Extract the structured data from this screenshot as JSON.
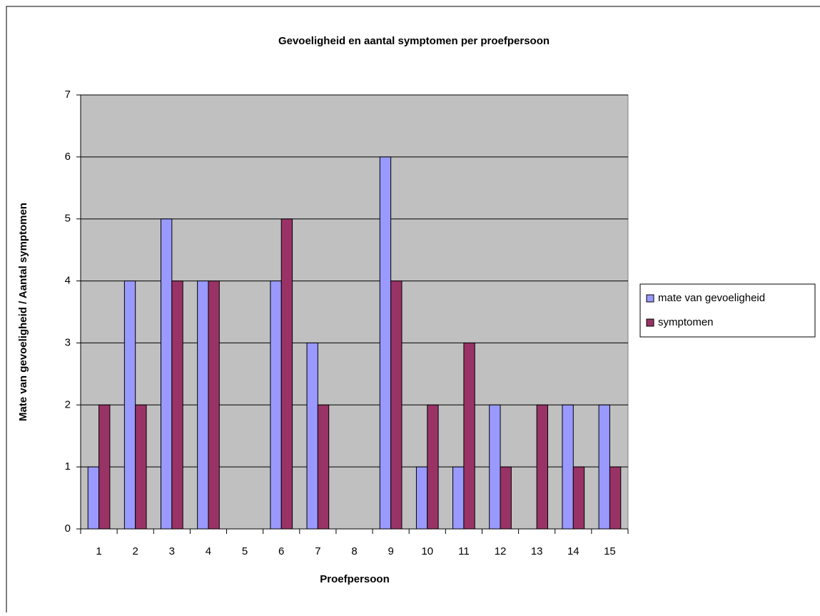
{
  "chart_data": {
    "type": "bar",
    "title": "Gevoeligheid en aantal symptomen per proefpersoon",
    "x_label": "Proefpersoon",
    "y_label": "Mate van gevoeligheid / Aantal symptomen",
    "categories": [
      "1",
      "2",
      "3",
      "4",
      "5",
      "6",
      "7",
      "8",
      "9",
      "10",
      "11",
      "12",
      "13",
      "14",
      "15"
    ],
    "series": [
      {
        "name": "mate van gevoeligheid",
        "color": "#9999ff",
        "values": [
          1,
          4,
          5,
          4,
          0,
          4,
          3,
          0,
          6,
          1,
          1,
          2,
          0,
          2,
          2
        ]
      },
      {
        "name": "symptomen",
        "color": "#993366",
        "values": [
          2,
          2,
          4,
          4,
          0,
          5,
          2,
          0,
          4,
          2,
          3,
          1,
          2,
          1,
          1
        ]
      }
    ],
    "ylim": [
      0,
      7
    ],
    "yticks": [
      0,
      1,
      2,
      3,
      4,
      5,
      6,
      7
    ],
    "grid": true,
    "legend": "right"
  }
}
